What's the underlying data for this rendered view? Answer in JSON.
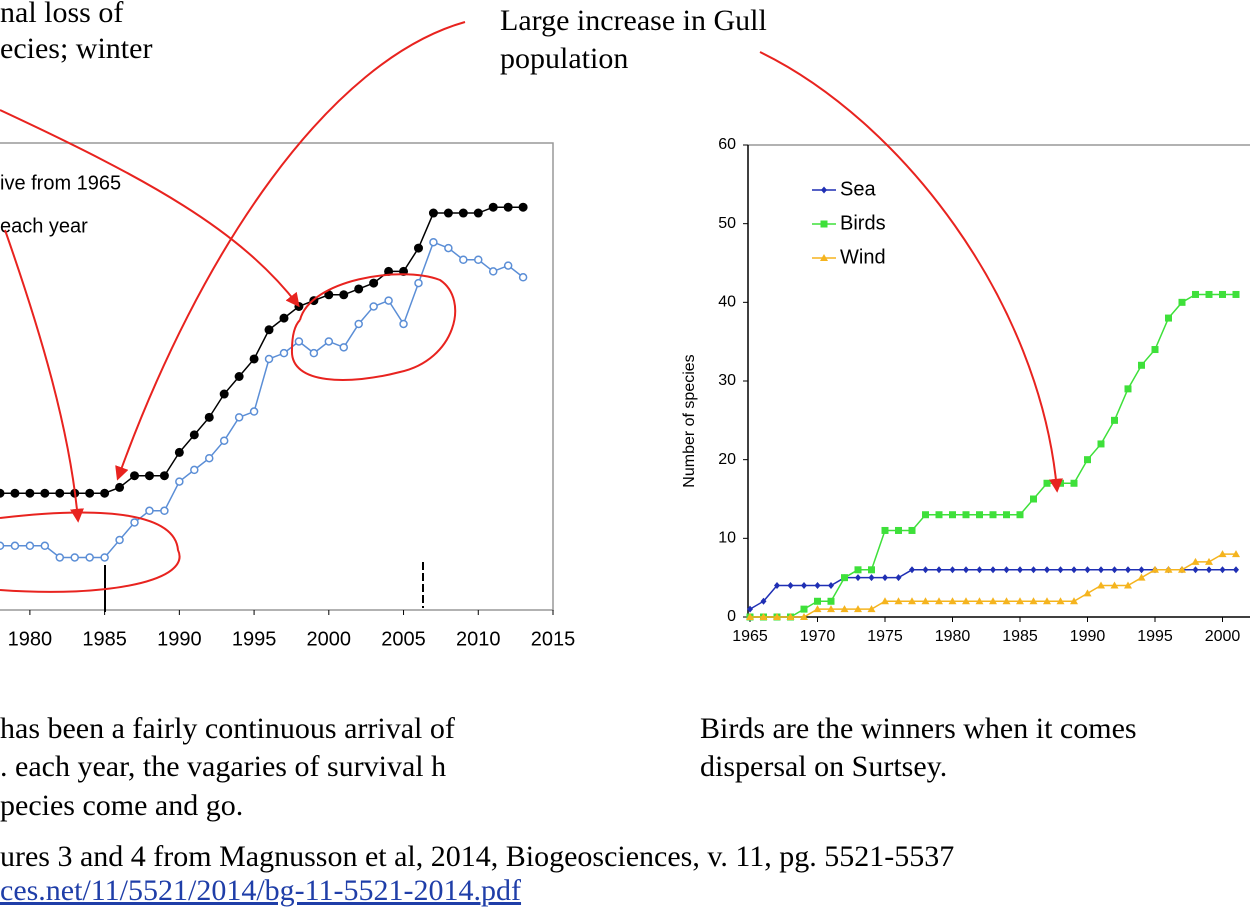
{
  "annotations": {
    "loss": [
      "nal loss of",
      "ecies; winter"
    ],
    "gull": [
      "Large increase in Gull",
      "population"
    ]
  },
  "captions": {
    "left": [
      "has been a fairly continuous arrival of",
      ". each year, the vagaries of survival h",
      "pecies come and go."
    ],
    "right": [
      "Birds are the winners when it comes",
      "dispersal on Surtsey."
    ]
  },
  "footer": {
    "source": "ures 3 and 4 from Magnusson et al, 2014, Biogeosciences, v. 11, pg. 5521-5537",
    "link": "ces.net/11/5521/2014/bg-11-5521-2014.pdf"
  },
  "chart_data": [
    {
      "type": "line",
      "x": [
        1978,
        1979,
        1980,
        1981,
        1982,
        1983,
        1984,
        1985,
        1986,
        1987,
        1988,
        1989,
        1990,
        1991,
        1992,
        1993,
        1994,
        1995,
        1996,
        1997,
        1998,
        1999,
        2000,
        2001,
        2002,
        2003,
        2004,
        2005,
        2006,
        2007,
        2008,
        2009,
        2010,
        2011,
        2012,
        2013
      ],
      "series": [
        {
          "name": "ive from 1965",
          "color": "#000000",
          "marker": "dot",
          "values": [
            20,
            20,
            20,
            20,
            20,
            20,
            20,
            20,
            21,
            23,
            23,
            23,
            27,
            30,
            33,
            37,
            40,
            43,
            48,
            50,
            52,
            53,
            54,
            54,
            55,
            56,
            58,
            58,
            62,
            68,
            68,
            68,
            68,
            69,
            69,
            69
          ]
        },
        {
          "name": "each year",
          "color": "#5b8ed6",
          "marker": "ring",
          "values": [
            11,
            11,
            11,
            11,
            9,
            9,
            9,
            9,
            12,
            15,
            17,
            17,
            22,
            24,
            26,
            29,
            33,
            34,
            43,
            44,
            46,
            44,
            46,
            45,
            49,
            52,
            53,
            49,
            56,
            63,
            62,
            60,
            60,
            58,
            59,
            57
          ]
        }
      ],
      "xlim": [
        1978,
        2015
      ],
      "xticks": [
        1980,
        1985,
        1990,
        1995,
        2000,
        2005,
        2010,
        2015
      ],
      "ylim": [
        0,
        80
      ]
    },
    {
      "type": "line",
      "y_label": "Number of species",
      "x": [
        1965,
        1966,
        1967,
        1968,
        1969,
        1970,
        1971,
        1972,
        1973,
        1974,
        1975,
        1976,
        1977,
        1978,
        1979,
        1980,
        1981,
        1982,
        1983,
        1984,
        1985,
        1986,
        1987,
        1988,
        1989,
        1990,
        1991,
        1992,
        1993,
        1994,
        1995,
        1996,
        1997,
        1998,
        1999,
        2000,
        2001
      ],
      "series": [
        {
          "name": "Sea",
          "color": "#1f2fb4",
          "marker": "diamond",
          "values": [
            1,
            2,
            4,
            4,
            4,
            4,
            4,
            5,
            5,
            5,
            5,
            5,
            6,
            6,
            6,
            6,
            6,
            6,
            6,
            6,
            6,
            6,
            6,
            6,
            6,
            6,
            6,
            6,
            6,
            6,
            6,
            6,
            6,
            6,
            6,
            6,
            6
          ]
        },
        {
          "name": "Birds",
          "color": "#3ee03a",
          "marker": "square",
          "values": [
            0,
            0,
            0,
            0,
            1,
            2,
            2,
            5,
            6,
            6,
            11,
            11,
            11,
            13,
            13,
            13,
            13,
            13,
            13,
            13,
            13,
            15,
            17,
            17,
            17,
            20,
            22,
            25,
            29,
            32,
            34,
            38,
            40,
            41,
            41,
            41,
            41
          ]
        },
        {
          "name": "Wind",
          "color": "#f5b41e",
          "marker": "triangle",
          "values": [
            0,
            0,
            0,
            0,
            0,
            1,
            1,
            1,
            1,
            1,
            2,
            2,
            2,
            2,
            2,
            2,
            2,
            2,
            2,
            2,
            2,
            2,
            2,
            2,
            2,
            3,
            4,
            4,
            4,
            5,
            6,
            6,
            6,
            7,
            7,
            8,
            8
          ]
        }
      ],
      "xlim": [
        1965,
        2002
      ],
      "xticks": [
        1965,
        1970,
        1975,
        1980,
        1985,
        1990,
        1995,
        2000
      ],
      "ylim": [
        0,
        60
      ],
      "yticks": [
        0,
        10,
        20,
        30,
        40,
        50,
        60
      ]
    }
  ]
}
